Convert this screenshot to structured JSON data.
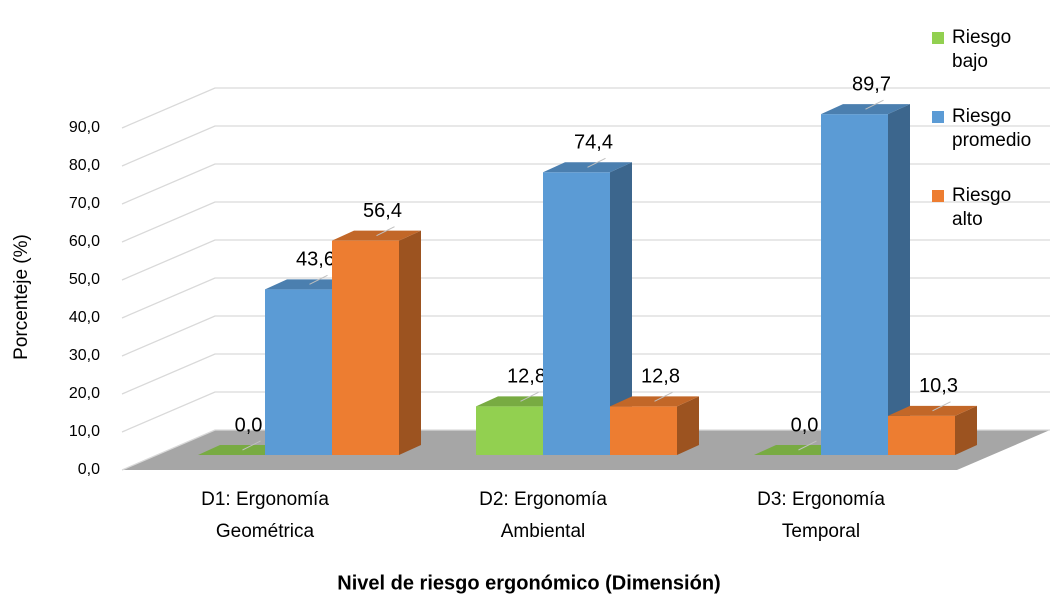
{
  "chart_data": {
    "type": "bar3d",
    "x_label": "Nivel de riesgo ergonómico (Dimensión)",
    "y_label": "Porcenteje (%)",
    "categories": [
      "D1: Ergonomía Geométrica",
      "D2: Ergonomía Ambiental",
      "D3: Ergonomía Temporal"
    ],
    "series": [
      {
        "name": "Riesgo bajo",
        "color": "#92d050",
        "values": [
          0,
          12.8,
          0
        ],
        "value_labels": [
          "0,0",
          "12,8",
          "0,0"
        ]
      },
      {
        "name": "Riesgo promedio",
        "color": "#5b9bd5",
        "values": [
          43.6,
          74.4,
          89.7
        ],
        "value_labels": [
          "43,6",
          "74,4",
          "89,7"
        ]
      },
      {
        "name": "Riesgo alto",
        "color": "#ed7d31",
        "values": [
          56.4,
          12.8,
          10.3
        ],
        "value_labels": [
          "56,4",
          "12,8",
          "10,3"
        ]
      }
    ],
    "ylim": [
      0,
      90
    ],
    "yticks": [
      {
        "value": 0,
        "label": "0,0"
      },
      {
        "value": 10,
        "label": "10,0"
      },
      {
        "value": 20,
        "label": "20,0"
      },
      {
        "value": 30,
        "label": "30,0"
      },
      {
        "value": 40,
        "label": "40,0"
      },
      {
        "value": 50,
        "label": "50,0"
      },
      {
        "value": 60,
        "label": "60,0"
      },
      {
        "value": 70,
        "label": "70,0"
      },
      {
        "value": 80,
        "label": "80,0"
      },
      {
        "value": 90,
        "label": "90,0"
      }
    ],
    "grid": true,
    "legend": "top-right"
  }
}
